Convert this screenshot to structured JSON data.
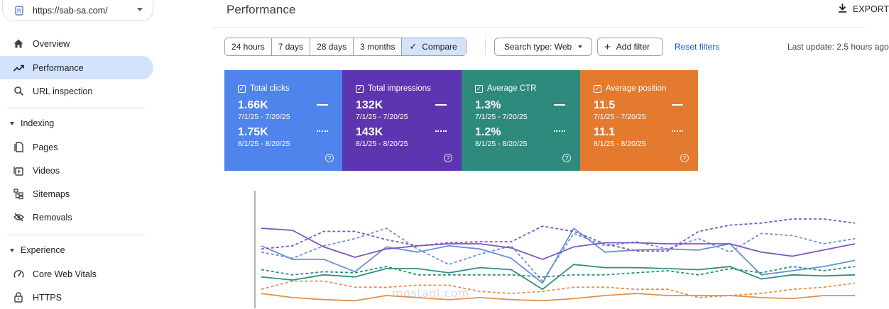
{
  "property": {
    "url": "https://sab-sa.com/"
  },
  "sidebar": {
    "overview": "Overview",
    "performance": "Performance",
    "url_inspection": "URL inspection",
    "indexing": {
      "label": "Indexing",
      "items": [
        "Pages",
        "Videos",
        "Sitemaps",
        "Removals"
      ]
    },
    "experience": {
      "label": "Experience",
      "items": [
        "Core Web Vitals",
        "HTTPS"
      ]
    }
  },
  "header": {
    "title": "Performance",
    "export_label": "EXPORT"
  },
  "toolbar": {
    "date_ranges": [
      "24 hours",
      "7 days",
      "28 days",
      "3 months"
    ],
    "compare_label": "Compare",
    "search_type": "Search type: Web",
    "add_filter": "Add filter",
    "reset_filters": "Reset filters",
    "last_update": "Last update: 2.5 hours ago"
  },
  "metrics": [
    {
      "title": "Total clicks",
      "current_value": "1.66K",
      "current_range": "7/1/25 - 7/20/25",
      "compare_value": "1.75K",
      "compare_range": "8/1/25 - 8/20/25",
      "color": "#4e84ec"
    },
    {
      "title": "Total impressions",
      "current_value": "132K",
      "current_range": "7/1/25 - 7/20/25",
      "compare_value": "143K",
      "compare_range": "8/1/25 - 8/20/25",
      "color": "#5e35b1"
    },
    {
      "title": "Average CTR",
      "current_value": "1.3%",
      "current_range": "7/1/25 - 7/20/25",
      "compare_value": "1.2%",
      "compare_range": "8/1/25 - 8/20/25",
      "color": "#2e8a7c"
    },
    {
      "title": "Average position",
      "current_value": "11.5",
      "current_range": "7/1/25 - 7/20/25",
      "compare_value": "11.1",
      "compare_range": "8/1/25 - 8/20/25",
      "color": "#e37a2e"
    }
  ],
  "chart_data": {
    "type": "line",
    "x": [
      1,
      2,
      3,
      4,
      5,
      6,
      7,
      8,
      9,
      10,
      11,
      12,
      13,
      14,
      15,
      16,
      17,
      18,
      19,
      20
    ],
    "series": [
      {
        "metric": "Total clicks",
        "period": "7/1/25 - 7/20/25",
        "style": "solid",
        "color": "#6a8fd8",
        "values": [
          0.48,
          0.35,
          0.35,
          0.23,
          0.47,
          0.42,
          0.48,
          0.45,
          0.36,
          0.12,
          0.65,
          0.42,
          0.44,
          0.45,
          0.44,
          0.5,
          0.2,
          0.24,
          0.28,
          0.34
        ]
      },
      {
        "metric": "Total clicks",
        "period": "8/1/25 - 8/20/25",
        "style": "dashed",
        "color": "#6a8fd8",
        "values": [
          0.42,
          0.36,
          0.48,
          0.55,
          0.65,
          0.45,
          0.3,
          0.4,
          0.48,
          0.14,
          0.6,
          0.48,
          0.52,
          0.45,
          0.55,
          0.42,
          0.6,
          0.58,
          0.5,
          0.55
        ]
      },
      {
        "metric": "Total impressions",
        "period": "7/1/25 - 7/20/25",
        "style": "solid",
        "color": "#7e57c2",
        "values": [
          0.65,
          0.63,
          0.47,
          0.37,
          0.45,
          0.48,
          0.5,
          0.5,
          0.46,
          0.35,
          0.47,
          0.51,
          0.51,
          0.5,
          0.5,
          0.5,
          0.42,
          0.38,
          0.44,
          0.5
        ]
      },
      {
        "metric": "Total impressions",
        "period": "8/1/25 - 8/20/25",
        "style": "dashed",
        "color": "#7e57c2",
        "values": [
          0.45,
          0.48,
          0.62,
          0.62,
          0.54,
          0.48,
          0.51,
          0.52,
          0.52,
          0.67,
          0.62,
          0.5,
          0.43,
          0.43,
          0.62,
          0.68,
          0.7,
          0.74,
          0.74,
          0.7
        ]
      },
      {
        "metric": "Average CTR",
        "period": "7/1/25 - 7/20/25",
        "style": "solid",
        "color": "#2f8f80",
        "values": [
          0.18,
          0.15,
          0.2,
          0.18,
          0.26,
          0.26,
          0.22,
          0.27,
          0.25,
          0.06,
          0.3,
          0.27,
          0.27,
          0.26,
          0.25,
          0.28,
          0.16,
          0.2,
          0.19,
          0.2
        ]
      },
      {
        "metric": "Average CTR",
        "period": "8/1/25 - 8/20/25",
        "style": "dashed",
        "color": "#2f8f80",
        "values": [
          0.25,
          0.2,
          0.23,
          0.22,
          0.28,
          0.2,
          0.2,
          0.2,
          0.2,
          0.18,
          0.2,
          0.2,
          0.22,
          0.24,
          0.2,
          0.26,
          0.22,
          0.28,
          0.24,
          0.28
        ]
      },
      {
        "metric": "Average position",
        "period": "7/1/25 - 7/20/25",
        "style": "solid",
        "color": "#e0914a",
        "values": [
          0.02,
          -0.02,
          -0.04,
          -0.05,
          0.0,
          -0.02,
          -0.04,
          -0.02,
          -0.04,
          -0.05,
          -0.03,
          0.0,
          0.02,
          0.0,
          0.0,
          0.0,
          -0.02,
          -0.03,
          0.0,
          0.0
        ]
      },
      {
        "metric": "Average position",
        "period": "8/1/25 - 8/20/25",
        "style": "dashed",
        "color": "#e0914a",
        "values": [
          0.06,
          0.14,
          0.14,
          0.08,
          0.08,
          0.1,
          0.1,
          0.04,
          0.02,
          0.04,
          0.08,
          0.08,
          0.06,
          0.06,
          -0.02,
          0.0,
          0.02,
          0.06,
          0.08,
          0.12
        ]
      }
    ]
  },
  "watermark": {
    "text": "mostaql.com"
  }
}
